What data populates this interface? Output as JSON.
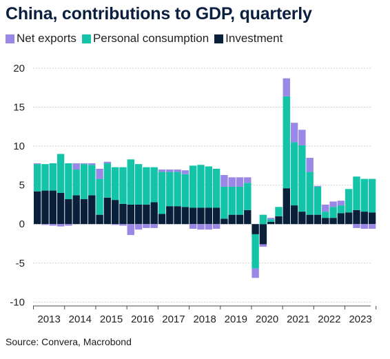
{
  "title": "China, contributions to GDP, quarterly",
  "source": "Source: Convera, Macrobond",
  "colors": {
    "net_exports": "#9b87e6",
    "personal_consumption": "#14c4a8",
    "investment": "#0a1f3a",
    "title": "#0b1f3f"
  },
  "legend": [
    {
      "name": "Net exports",
      "color": "#9b87e6"
    },
    {
      "name": "Personal consumption",
      "color": "#14c4a8"
    },
    {
      "name": "Investment",
      "color": "#0a1f3a"
    }
  ],
  "chart_data": {
    "type": "bar",
    "stacked": true,
    "title": "China, contributions to GDP, quarterly",
    "xlabel": "",
    "ylabel": "",
    "ylim": [
      -10.5,
      21.5
    ],
    "yticks": [
      -10,
      -5,
      0,
      5,
      10,
      15,
      20
    ],
    "grid": true,
    "legend_position": "top-left",
    "year_labels": [
      "2013",
      "2014",
      "2015",
      "2016",
      "2017",
      "2018",
      "2019",
      "2020",
      "2021",
      "2022",
      "2023"
    ],
    "categories": [
      "2013Q1",
      "2013Q2",
      "2013Q3",
      "2013Q4",
      "2014Q1",
      "2014Q2",
      "2014Q3",
      "2014Q4",
      "2015Q1",
      "2015Q2",
      "2015Q3",
      "2015Q4",
      "2016Q1",
      "2016Q2",
      "2016Q3",
      "2016Q4",
      "2017Q1",
      "2017Q2",
      "2017Q3",
      "2017Q4",
      "2018Q1",
      "2018Q2",
      "2018Q3",
      "2018Q4",
      "2019Q1",
      "2019Q2",
      "2019Q3",
      "2019Q4",
      "2020Q1",
      "2020Q2",
      "2020Q3",
      "2020Q4",
      "2021Q1",
      "2021Q2",
      "2021Q3",
      "2021Q4",
      "2022Q1",
      "2022Q2",
      "2022Q3",
      "2022Q4",
      "2023Q1",
      "2023Q2",
      "2023Q3",
      "2023Q4"
    ],
    "series": [
      {
        "name": "Investment",
        "color": "#0a1f3a",
        "values": [
          4.2,
          4.3,
          4.3,
          4.0,
          3.2,
          3.7,
          3.2,
          3.7,
          1.2,
          3.4,
          3.1,
          2.6,
          2.5,
          2.5,
          2.5,
          2.8,
          1.3,
          2.3,
          2.3,
          2.2,
          2.1,
          2.1,
          2.1,
          2.1,
          0.7,
          1.2,
          1.2,
          1.8,
          -1.3,
          -2.6,
          0.3,
          1.0,
          4.6,
          2.4,
          1.6,
          1.2,
          1.2,
          0.8,
          0.8,
          1.4,
          1.5,
          1.8,
          1.6,
          1.5
        ]
      },
      {
        "name": "Personal consumption",
        "color": "#14c4a8",
        "values": [
          3.5,
          3.4,
          3.5,
          5.0,
          4.6,
          3.3,
          4.5,
          3.9,
          4.6,
          4.4,
          4.2,
          4.7,
          5.8,
          5.2,
          4.8,
          4.5,
          5.4,
          4.4,
          4.4,
          4.2,
          5.4,
          5.5,
          5.3,
          5.0,
          4.1,
          3.6,
          3.6,
          3.5,
          -4.4,
          1.2,
          0.3,
          1.2,
          11.8,
          8.1,
          8.5,
          5.5,
          3.6,
          0.8,
          1.4,
          1.0,
          3.0,
          4.3,
          4.2,
          4.3
        ]
      },
      {
        "name": "Net exports",
        "color": "#9b87e6",
        "values": [
          0.1,
          -0.1,
          -0.2,
          -0.3,
          -0.2,
          0.8,
          0.1,
          0.2,
          1.3,
          0.2,
          -0.1,
          -0.2,
          -1.4,
          -0.7,
          -0.5,
          -0.5,
          0.3,
          0.3,
          0.3,
          0.5,
          -0.6,
          -0.7,
          -0.7,
          -0.6,
          1.5,
          1.2,
          1.2,
          0.7,
          -1.2,
          -0.3,
          0.2,
          0.0,
          2.3,
          2.5,
          2.0,
          1.8,
          0.1,
          0.9,
          0.7,
          0.6,
          0.0,
          -0.5,
          -0.6,
          -0.6
        ]
      }
    ]
  }
}
